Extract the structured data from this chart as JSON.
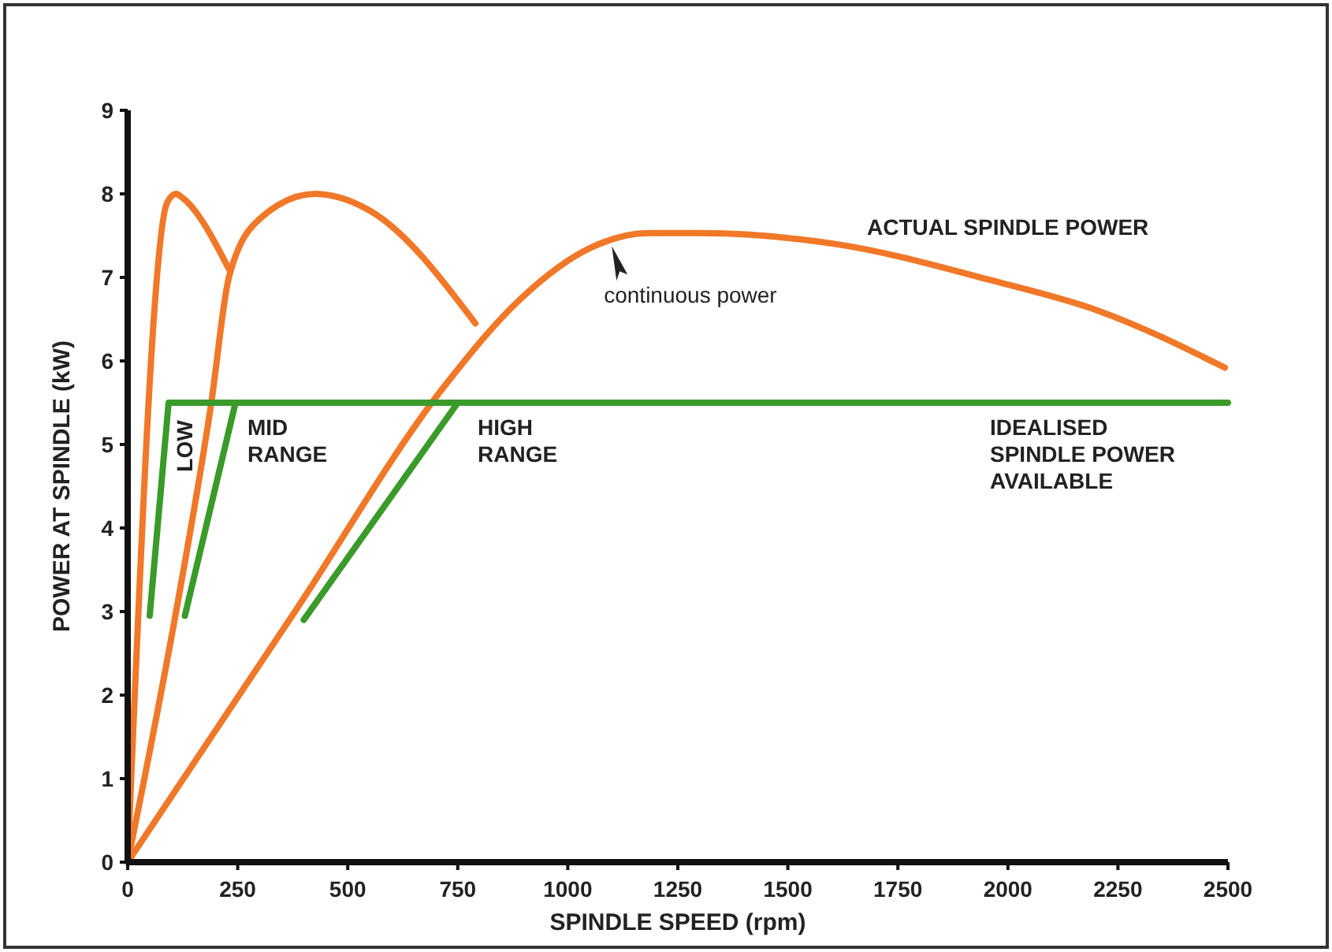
{
  "chart_data": {
    "type": "line",
    "xlabel": "SPINDLE SPEED (rpm)",
    "ylabel": "POWER AT SPINDLE (kW)",
    "xlim": [
      0,
      2500
    ],
    "xticks": [
      0,
      250,
      500,
      750,
      1000,
      1250,
      1500,
      1750,
      2000,
      2250,
      2500
    ],
    "ylim": [
      0,
      9
    ],
    "yticks": [
      0,
      1,
      2,
      3,
      4,
      5,
      6,
      7,
      8,
      9
    ],
    "grid": false,
    "marker": "none",
    "line_style": "solid",
    "series": [
      {
        "color": "#f07828",
        "x": [
          0,
          90,
          110,
          125,
          230
        ],
        "values": [
          0,
          7.9,
          8,
          7.95,
          7.1
        ]
      },
      {
        "color": "#f07828",
        "x": [
          0,
          110,
          190,
          230,
          300,
          426,
          550,
          790
        ],
        "values": [
          0,
          3,
          5.5,
          7,
          7.7,
          8,
          7.8,
          6.45
        ]
      },
      {
        "color": "#f07828",
        "x": [
          0,
          380,
          720,
          892,
          1050,
          1184,
          1300,
          1608,
          1966,
          2206,
          2493
        ],
        "values": [
          0,
          3,
          5.7,
          6.74,
          7.35,
          7.53,
          7.53,
          7.4,
          6.96,
          6.6,
          5.92
        ]
      },
      {
        "color": "#3a9a2a",
        "x": [
          50,
          93,
          240
        ],
        "values": [
          2.95,
          5.5,
          5.5
        ]
      },
      {
        "color": "#3a9a2a",
        "x": [
          130,
          245,
          750
        ],
        "values": [
          2.95,
          5.5,
          5.5
        ]
      },
      {
        "color": "#3a9a2a",
        "x": [
          400,
          750,
          2500
        ],
        "values": [
          2.9,
          5.5,
          5.5
        ]
      }
    ],
    "annotations": [
      "ACTUAL SPINDLE POWER",
      {
        "text": "continuous power",
        "x": 1100,
        "y": 7.45
      },
      "LOW",
      "MID RANGE",
      "HIGH RANGE",
      "IDEALISED SPINDLE POWER AVAILABLE"
    ]
  }
}
